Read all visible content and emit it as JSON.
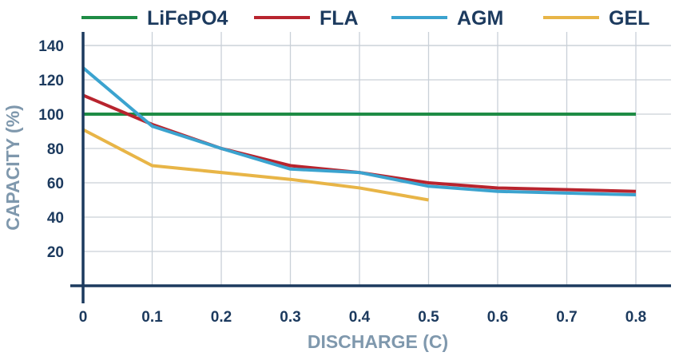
{
  "chart_data": {
    "type": "line",
    "xlabel": "DISCHARGE (C)",
    "ylabel": "CAPACITY (%)",
    "xlim": [
      0,
      0.8
    ],
    "ylim": [
      0,
      140
    ],
    "x_ticks": [
      "0",
      "0.1",
      "0.2",
      "0.3",
      "0.4",
      "0.5",
      "0.6",
      "0.7",
      "0.8"
    ],
    "y_ticks": [
      "20",
      "40",
      "60",
      "80",
      "100",
      "120",
      "140"
    ],
    "grid": true,
    "legend_position": "top",
    "series": [
      {
        "name": "LiFePO4",
        "color": "#1e8c45",
        "x": [
          0,
          0.8
        ],
        "y": [
          100,
          100
        ]
      },
      {
        "name": "FLA",
        "color": "#b8242e",
        "x": [
          0,
          0.1,
          0.2,
          0.3,
          0.4,
          0.5,
          0.6,
          0.8
        ],
        "y": [
          111,
          94,
          80,
          70,
          66,
          60,
          57,
          55
        ]
      },
      {
        "name": "AGM",
        "color": "#3ba3cf",
        "x": [
          0,
          0.1,
          0.2,
          0.3,
          0.4,
          0.5,
          0.6,
          0.8
        ],
        "y": [
          127,
          93,
          80,
          68,
          66,
          58,
          55,
          53
        ]
      },
      {
        "name": "GEL",
        "color": "#e8b547",
        "x": [
          0,
          0.1,
          0.3,
          0.4,
          0.5
        ],
        "y": [
          91,
          70,
          62,
          57,
          50
        ]
      }
    ]
  }
}
